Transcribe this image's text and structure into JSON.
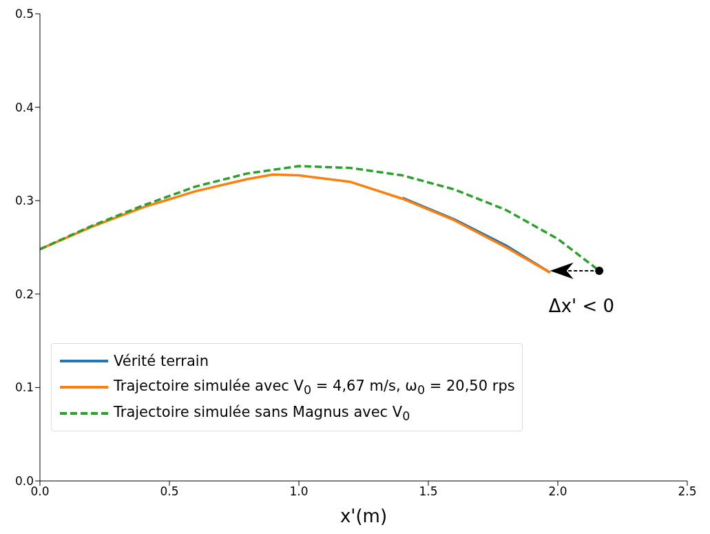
{
  "chart_data": {
    "type": "line",
    "xlabel": "x'(m)",
    "xlim": [
      0,
      2.5
    ],
    "ylim": [
      0,
      0.5
    ],
    "xticks": [
      {
        "value": 0,
        "label": "0.0"
      },
      {
        "value": 0.5,
        "label": "0.5"
      },
      {
        "value": 1,
        "label": "1.0"
      },
      {
        "value": 1.5,
        "label": "1.5"
      },
      {
        "value": 2,
        "label": "2.0"
      },
      {
        "value": 2.5,
        "label": "2.5"
      }
    ],
    "yticks": [
      {
        "value": 0,
        "label": "0.0"
      },
      {
        "value": 0.1,
        "label": "0.1"
      },
      {
        "value": 0.2,
        "label": "0.2"
      },
      {
        "value": 0.3,
        "label": "0.3"
      },
      {
        "value": 0.4,
        "label": "0.4"
      },
      {
        "value": 0.5,
        "label": "0.5"
      }
    ],
    "grid": false,
    "legend": "bottom left",
    "marker": "none",
    "series": [
      {
        "name": "Vérité terrain",
        "color": "#1f77b4",
        "line_style": "solid",
        "x": [
          1.4,
          1.6,
          1.8,
          1.97
        ],
        "values": [
          0.303,
          0.28,
          0.252,
          0.223
        ]
      },
      {
        "name": "Trajectoire simulée avec V$_{0}$ = 4,67 m/s,  ω$_{0}$ = 20,50 rps",
        "color": "#ff7f0e",
        "line_style": "solid",
        "x": [
          0,
          0.2,
          0.4,
          0.6,
          0.8,
          0.9,
          1.0,
          1.2,
          1.4,
          1.6,
          1.8,
          1.97
        ],
        "values": [
          0.248,
          0.272,
          0.293,
          0.31,
          0.323,
          0.328,
          0.327,
          0.32,
          0.302,
          0.279,
          0.25,
          0.223
        ]
      },
      {
        "name": "Trajectoire simulée sans Magnus avec V$_{0}$",
        "color": "#2ca02c",
        "line_style": "dashed",
        "x": [
          0,
          0.2,
          0.4,
          0.6,
          0.8,
          1.0,
          1.2,
          1.4,
          1.6,
          1.8,
          2.0,
          2.16
        ],
        "values": [
          0.248,
          0.273,
          0.295,
          0.315,
          0.329,
          0.337,
          0.335,
          0.327,
          0.312,
          0.29,
          0.259,
          0.225
        ]
      }
    ],
    "annotations": [
      "Δx' < 0"
    ]
  }
}
